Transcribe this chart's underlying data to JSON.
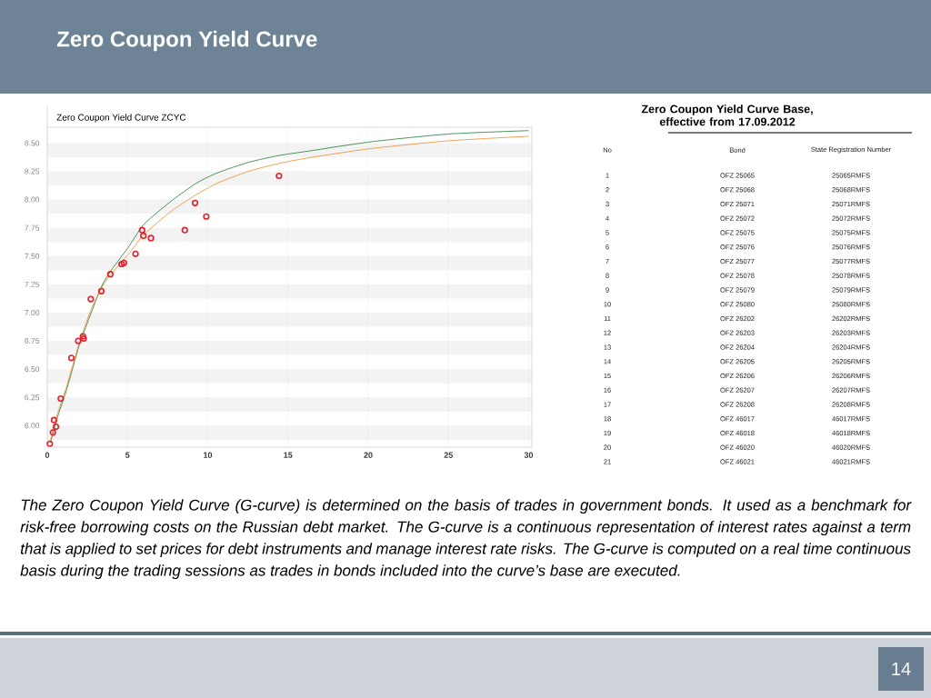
{
  "chart_data": {
    "type": "line",
    "title": "Zero Coupon Yield Curve",
    "subtitle": "Zero Coupon Yield Curve ZCYC",
    "annotations": [
      "The Zero Coupon Yield Curve (G-curve) is determined on the basis of trades in government bonds. It used as a benchmark for risk-free borrowing costs on the Russian debt market. The G-curve is a continuous representation of interest rates against a term that is applied to set prices for debt instruments and manage interest rate risks. The G-curve is computed on a real time continuous basis during the trading sessions as trades in bonds included into the curve’s base are executed.",
      "14",
      "Zero Coupon Yield Curve Base, effective from 17.09.2012",
      "No",
      "Bond",
      "State Registration Number",
      "1",
      "OFZ 25065",
      "25065RMFS",
      "2",
      "OFZ 25068",
      "25068RMFS",
      "3",
      "OFZ 25071",
      "25071RMFS",
      "4",
      "OFZ 25072",
      "25072RMFS",
      "5",
      "OFZ 25075",
      "25075RMFS",
      "6",
      "OFZ 25076",
      "25076RMFS",
      "7",
      "OFZ 25077",
      "25077RMFS",
      "8",
      "OFZ 25078",
      "25078RMFS",
      "9",
      "OFZ 25079",
      "25079RMFS",
      "10",
      "OFZ 25080",
      "25080RMFS",
      "11",
      "OFZ 26202",
      "26202RMFS",
      "12",
      "OFZ 26203",
      "26203RMFS",
      "13",
      "OFZ 26204",
      "26204RMFS",
      "14",
      "OFZ 26205",
      "26205RMFS",
      "15",
      "OFZ 26206",
      "26206RMFS",
      "16",
      "OFZ 26207",
      "26207RMFS",
      "17",
      "OFZ 26208",
      "26208RMFS",
      "18",
      "OFZ 46017",
      "46017RMFS",
      "19",
      "OFZ 46018",
      "46018RMFS",
      "20",
      "OFZ 46020",
      "46020RMFS",
      "21",
      "OFZ 46021",
      "46021RMFS"
    ],
    "xlim": [
      0,
      30.2
    ],
    "ylim": [
      5.81,
      8.64
    ],
    "xticks": [
      0,
      5,
      10,
      15,
      20,
      25,
      30
    ],
    "yticks": [
      {
        "value": 6,
        "label": "6.00"
      },
      6.25,
      {
        "value": 6.5,
        "label": "6.50"
      },
      6.75,
      {
        "value": 7,
        "label": "7.00"
      },
      7.25,
      {
        "value": 7.5,
        "label": "7.50"
      },
      7.75,
      {
        "value": 8,
        "label": "8.00"
      },
      8.25,
      {
        "value": 8.5,
        "label": "8.50"
      }
    ],
    "grid": "x",
    "bands": [
      {
        "axis": "y",
        "from": 5.875,
        "to": 6.0,
        "color": "#f3f3f3"
      },
      {
        "axis": "y",
        "from": 6.125,
        "to": 6.25,
        "color": "#f3f3f3"
      },
      {
        "axis": "y",
        "from": 6.375,
        "to": 6.5,
        "color": "#f3f3f3"
      },
      {
        "axis": "y",
        "from": 6.625,
        "to": 6.75,
        "color": "#f3f3f3"
      },
      {
        "axis": "y",
        "from": 6.875,
        "to": 7.0,
        "color": "#f3f3f3"
      },
      {
        "axis": "y",
        "from": 7.125,
        "to": 7.25,
        "color": "#f3f3f3"
      },
      {
        "axis": "y",
        "from": 7.375,
        "to": 7.5,
        "color": "#f3f3f3"
      },
      {
        "axis": "y",
        "from": 7.625,
        "to": 7.75,
        "color": "#f3f3f3"
      },
      {
        "axis": "y",
        "from": 7.875,
        "to": 8.0,
        "color": "#f3f3f3"
      },
      {
        "axis": "y",
        "from": 8.125,
        "to": 8.25,
        "color": "#f3f3f3"
      },
      {
        "axis": "y",
        "from": 8.375,
        "to": 8.5,
        "color": "#f3f3f3"
      }
    ],
    "series": [
      {
        "type": "line",
        "color": "#1e7b34",
        "x": [
          0.2,
          0.67,
          1.23,
          1.99,
          2.74,
          3.41,
          4.06,
          5.01,
          5.95,
          6.89,
          7.84,
          9.35,
          10.67,
          12.55,
          14.44,
          16.33,
          20.1,
          25.0,
          30.0
        ],
        "values": [
          5.85,
          6.09,
          6.33,
          6.71,
          7.0,
          7.24,
          7.39,
          7.57,
          7.77,
          7.89,
          8.0,
          8.15,
          8.24,
          8.33,
          8.39,
          8.43,
          8.51,
          8.58,
          8.61
        ]
      },
      {
        "type": "line",
        "color": "#ee8a2b",
        "x": [
          0.2,
          0.48,
          1.23,
          1.99,
          2.74,
          3.69,
          5.01,
          5.95,
          6.89,
          7.84,
          9.35,
          10.67,
          12.55,
          14.44,
          16.33,
          20.1,
          25.0,
          30.0
        ],
        "values": [
          5.86,
          6.04,
          6.36,
          6.73,
          7.03,
          7.29,
          7.51,
          7.68,
          7.8,
          7.91,
          8.05,
          8.15,
          8.25,
          8.32,
          8.37,
          8.45,
          8.52,
          8.56
        ]
      },
      {
        "type": "scatter",
        "color": "#e5202e",
        "marker": "circle",
        "x": [
          0.16,
          0.35,
          0.42,
          0.54,
          0.84,
          1.5,
          1.93,
          2.22,
          2.27,
          2.71,
          3.37,
          3.93,
          4.63,
          4.78,
          5.5,
          5.91,
          5.99,
          6.46,
          8.57,
          9.21,
          9.91,
          14.44
        ],
        "values": [
          5.84,
          5.94,
          6.05,
          5.99,
          6.24,
          6.6,
          6.75,
          6.79,
          6.77,
          7.12,
          7.19,
          7.34,
          7.43,
          7.44,
          7.52,
          7.73,
          7.68,
          7.66,
          7.73,
          7.97,
          7.85,
          8.21
        ]
      }
    ]
  }
}
